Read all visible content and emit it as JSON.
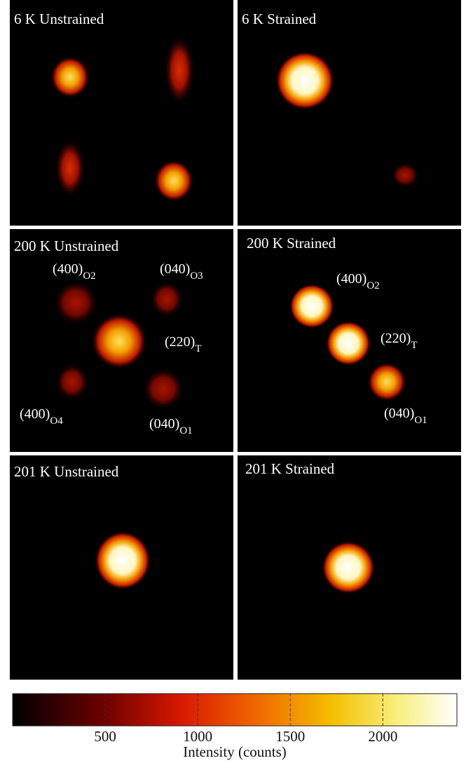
{
  "panels": [
    {
      "title": "6 K Unstrained"
    },
    {
      "title": "6 K Strained"
    },
    {
      "title": "200 K Unstrained",
      "labels": [
        {
          "text": "(400)",
          "sub": "O2"
        },
        {
          "text": "(040)",
          "sub": "O3"
        },
        {
          "text": "(220)",
          "sub": "T"
        },
        {
          "text": "(400)",
          "sub": "O4"
        },
        {
          "text": "(040)",
          "sub": "O1"
        }
      ]
    },
    {
      "title": "200 K Strained",
      "labels": [
        {
          "text": "(400)",
          "sub": "O2"
        },
        {
          "text": "(220)",
          "sub": "T"
        },
        {
          "text": "(040)",
          "sub": "O1"
        }
      ]
    },
    {
      "title": "201 K Unstrained"
    },
    {
      "title": "201 K Strained"
    }
  ],
  "colorbar": {
    "label": "Intensity (counts)",
    "lim": [
      0,
      2400
    ],
    "ticks": [
      500,
      1000,
      1500,
      2000
    ]
  }
}
